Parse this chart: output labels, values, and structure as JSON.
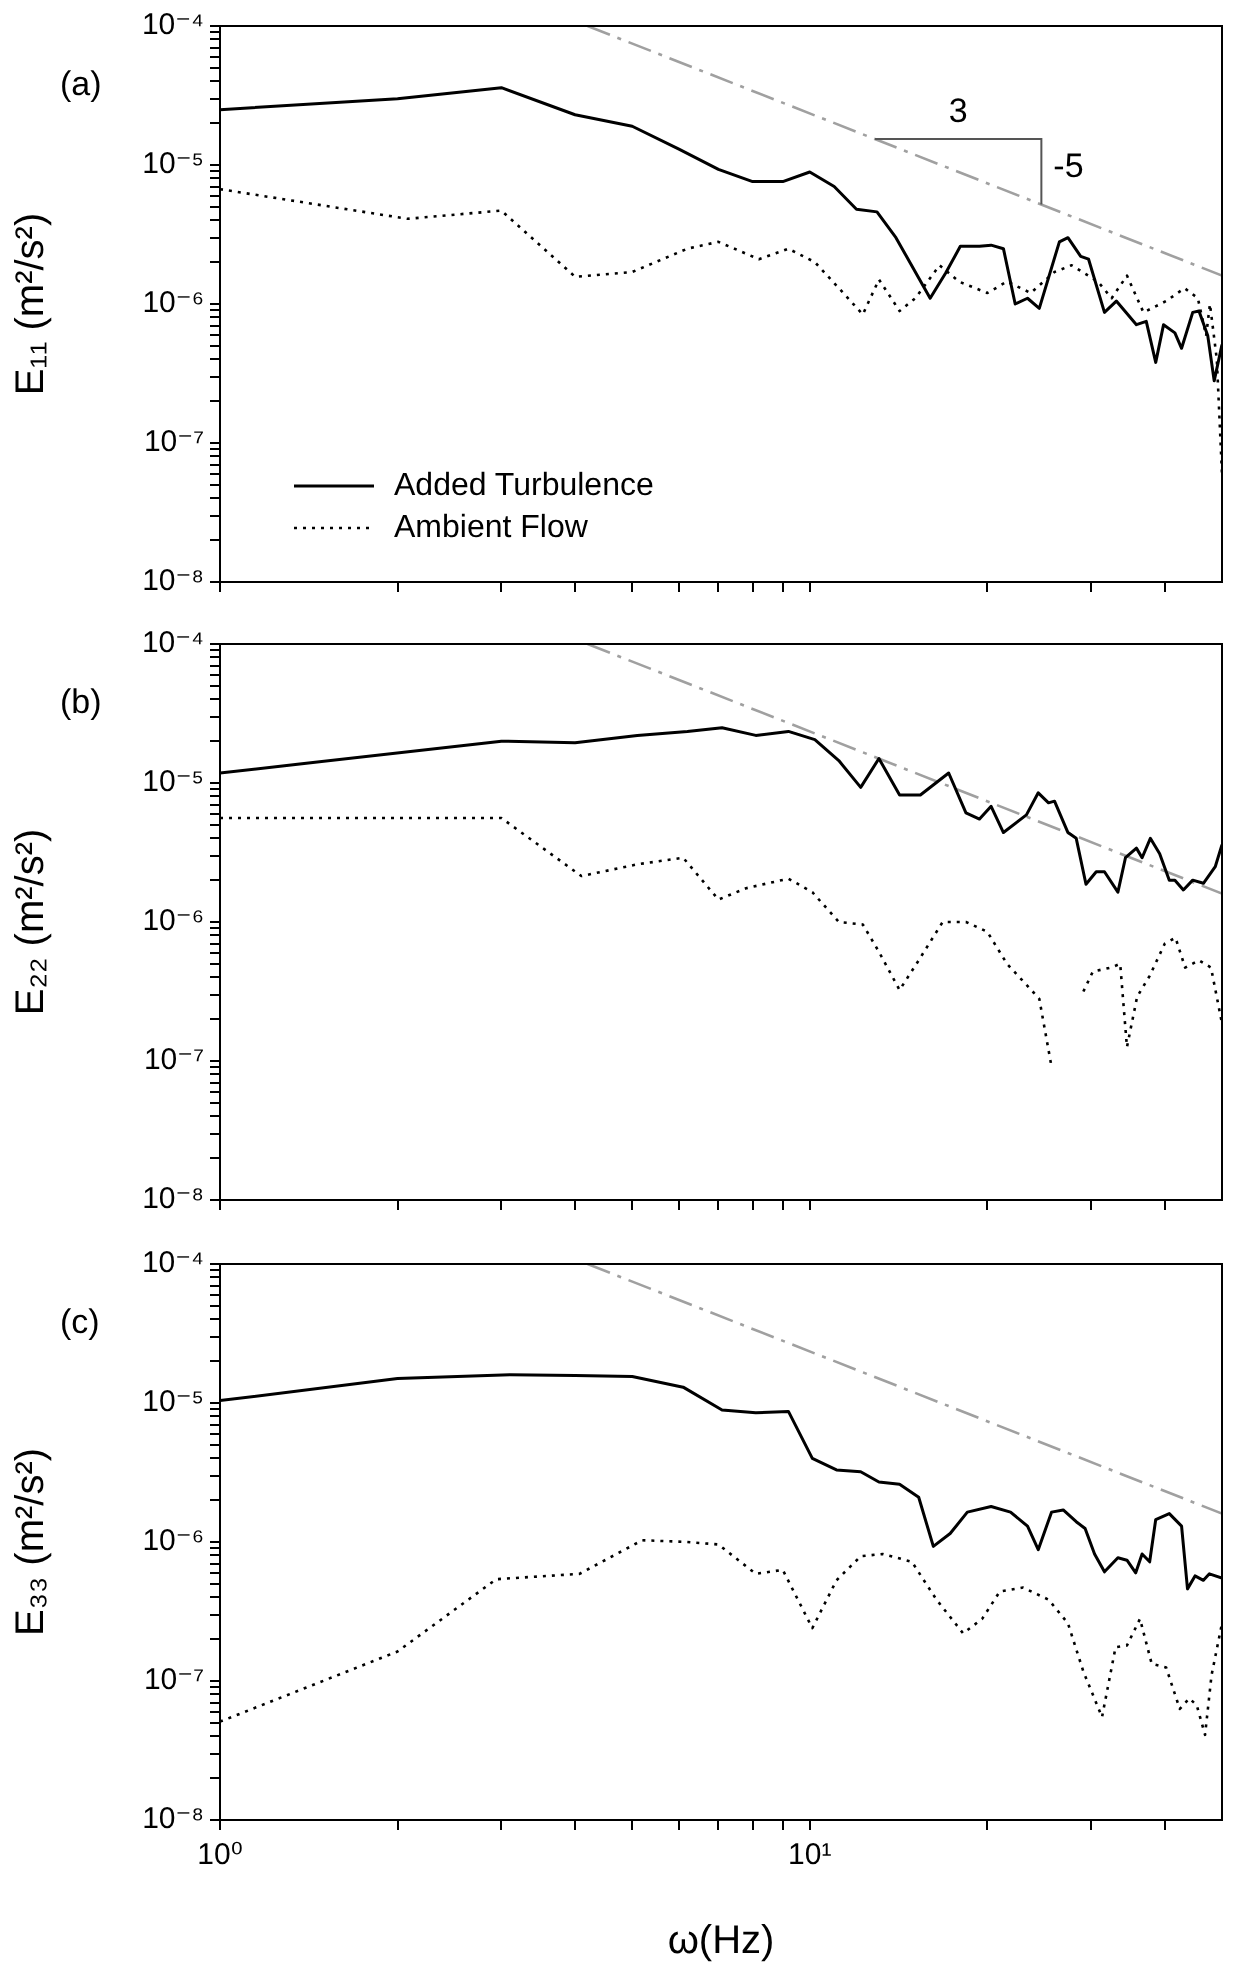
{
  "chart_data": [
    {
      "type": "line",
      "ylabel": "E₁₁ (m²/s²)",
      "log": "xy",
      "tick_labels": "y",
      "legend": "bottom left",
      "marker": "none",
      "xlim": [
        1,
        50
      ],
      "ylim": [
        1e-08,
        0.0001
      ],
      "xticks": [
        {
          "value": 1,
          "label": null
        },
        {
          "value": 2,
          "label": null
        },
        {
          "value": 3,
          "label": null
        },
        {
          "value": 4,
          "label": null
        },
        {
          "value": 5,
          "label": null
        },
        {
          "value": 6,
          "label": null
        },
        {
          "value": 7,
          "label": null
        },
        {
          "value": 8,
          "label": null
        },
        {
          "value": 9,
          "label": null
        },
        {
          "value": 10,
          "label": null
        },
        {
          "value": 20,
          "label": null
        },
        {
          "value": 30,
          "label": null
        },
        {
          "value": 40,
          "label": null
        }
      ],
      "yticks": [
        {
          "value": 1e-08,
          "label": "10⁻⁸"
        },
        {
          "value": 2e-08,
          "label": null
        },
        {
          "value": 3e-08,
          "label": null
        },
        {
          "value": 4e-08,
          "label": null
        },
        {
          "value": 5e-08,
          "label": null
        },
        {
          "value": 6e-08,
          "label": null
        },
        {
          "value": 7e-08,
          "label": null
        },
        {
          "value": 8e-08,
          "label": null
        },
        {
          "value": 9e-08,
          "label": null
        },
        {
          "value": 1e-07,
          "label": "10⁻⁷"
        },
        {
          "value": 2e-07,
          "label": null
        },
        {
          "value": 3e-07,
          "label": null
        },
        {
          "value": 4e-07,
          "label": null
        },
        {
          "value": 5e-07,
          "label": null
        },
        {
          "value": 6e-07,
          "label": null
        },
        {
          "value": 7e-07,
          "label": null
        },
        {
          "value": 8e-07,
          "label": null
        },
        {
          "value": 9e-07,
          "label": null
        },
        {
          "value": 1e-06,
          "label": "10⁻⁶"
        },
        {
          "value": 2e-06,
          "label": null
        },
        {
          "value": 3e-06,
          "label": null
        },
        {
          "value": 4e-06,
          "label": null
        },
        {
          "value": 5e-06,
          "label": null
        },
        {
          "value": 6e-06,
          "label": null
        },
        {
          "value": 7e-06,
          "label": null
        },
        {
          "value": 8e-06,
          "label": null
        },
        {
          "value": 9e-06,
          "label": null
        },
        {
          "value": 1e-05,
          "label": "10⁻⁵"
        },
        {
          "value": 2e-05,
          "label": null
        },
        {
          "value": 3e-05,
          "label": null
        },
        {
          "value": 4e-05,
          "label": null
        },
        {
          "value": 5e-05,
          "label": null
        },
        {
          "value": 6e-05,
          "label": null
        },
        {
          "value": 7e-05,
          "label": null
        },
        {
          "value": 8e-05,
          "label": null
        },
        {
          "value": 9e-05,
          "label": null
        },
        {
          "value": 0.0001,
          "label": "10⁻⁴"
        }
      ],
      "annotations": [
        "(a)",
        {
          "text": "3",
          "x": 12.9,
          "y": 1.54e-05
        },
        {
          "text": "-5",
          "x": 24.7,
          "y": 5.2e-06
        }
      ],
      "series": [
        {
          "name": "Added Turbulence",
          "color": "#000000",
          "line_style": "solid",
          "x": [
            1,
            2,
            3,
            4,
            5,
            6,
            7,
            8,
            9,
            10,
            11,
            12,
            13,
            14,
            16,
            17,
            18,
            19.4,
            20.3,
            21.3,
            22.3,
            23.4,
            24.5,
            26.5,
            27.4,
            28.8,
            29.7,
            31.6,
            33.1,
            35.8,
            37.2,
            38.6,
            39.8,
            41.6,
            42.7,
            44.6,
            45.7,
            47.3,
            48.5,
            50
          ],
          "values": [
            2.5e-05,
            3e-05,
            3.6e-05,
            2.3e-05,
            1.9e-05,
            1.3e-05,
            9.3e-06,
            7.6e-06,
            7.6e-06,
            8.9e-06,
            7e-06,
            4.8e-06,
            4.6e-06,
            3e-06,
            1.1e-06,
            1.67e-06,
            2.6e-06,
            2.6e-06,
            2.65e-06,
            2.5e-06,
            1e-06,
            1.1e-06,
            9.3e-07,
            2.8e-06,
            3e-06,
            2.2e-06,
            2.1e-06,
            8.7e-07,
            1.05e-06,
            7.1e-07,
            7.5e-07,
            3.8e-07,
            7.1e-07,
            6.2e-07,
            4.8e-07,
            8.7e-07,
            8.9e-07,
            5.9e-07,
            2.8e-07,
            5.1e-07
          ]
        },
        {
          "name": "Ambient Flow",
          "color": "#000000",
          "line_style": "dotted",
          "x": [
            1,
            2.08,
            3,
            4,
            5,
            6.2,
            7,
            8.2,
            9.2,
            10.2,
            11.4,
            12.3,
            13.1,
            14.2,
            15.1,
            16.6,
            17.9,
            20,
            21.6,
            23.7,
            26,
            27.8,
            30.8,
            32.5,
            34.5,
            36.8,
            40.2,
            43.2,
            45.5,
            47,
            47.7,
            49,
            50
          ],
          "values": [
            6.7e-06,
            4.1e-06,
            4.7e-06,
            1.57e-06,
            1.7e-06,
            2.5e-06,
            2.8e-06,
            2.1e-06,
            2.5e-06,
            2e-06,
            1.2e-06,
            8.4e-07,
            1.5e-06,
            8.9e-07,
            1.1e-06,
            1.9e-06,
            1.45e-06,
            1.2e-06,
            1.45e-06,
            1.2e-06,
            1.7e-06,
            1.9e-06,
            1.45e-06,
            1.1e-06,
            1.6e-06,
            8.7e-07,
            1.05e-06,
            1.3e-06,
            1.1e-06,
            5.9e-07,
            1e-06,
            4e-07,
            6e-08
          ]
        },
        {
          "type": "line",
          "color": "#a0a0a0",
          "line_style": "dashed",
          "x": [
            4.2,
            50
          ],
          "values": [
            0.0001,
            1.6e-06
          ]
        }
      ]
    },
    {
      "type": "line",
      "ylabel": "E₂₂ (m²/s²)",
      "log": "xy",
      "tick_labels": "y",
      "marker": "none",
      "xlim": [
        1,
        50
      ],
      "ylim": [
        1e-08,
        0.0001
      ],
      "xticks": [
        {
          "value": 1,
          "label": null
        },
        {
          "value": 2,
          "label": null
        },
        {
          "value": 3,
          "label": null
        },
        {
          "value": 4,
          "label": null
        },
        {
          "value": 5,
          "label": null
        },
        {
          "value": 6,
          "label": null
        },
        {
          "value": 7,
          "label": null
        },
        {
          "value": 8,
          "label": null
        },
        {
          "value": 9,
          "label": null
        },
        {
          "value": 10,
          "label": null
        },
        {
          "value": 20,
          "label": null
        },
        {
          "value": 30,
          "label": null
        },
        {
          "value": 40,
          "label": null
        }
      ],
      "yticks": [
        {
          "value": 1e-08,
          "label": "10⁻⁸"
        },
        {
          "value": 2e-08,
          "label": null
        },
        {
          "value": 3e-08,
          "label": null
        },
        {
          "value": 4e-08,
          "label": null
        },
        {
          "value": 5e-08,
          "label": null
        },
        {
          "value": 6e-08,
          "label": null
        },
        {
          "value": 7e-08,
          "label": null
        },
        {
          "value": 8e-08,
          "label": null
        },
        {
          "value": 9e-08,
          "label": null
        },
        {
          "value": 1e-07,
          "label": "10⁻⁷"
        },
        {
          "value": 2e-07,
          "label": null
        },
        {
          "value": 3e-07,
          "label": null
        },
        {
          "value": 4e-07,
          "label": null
        },
        {
          "value": 5e-07,
          "label": null
        },
        {
          "value": 6e-07,
          "label": null
        },
        {
          "value": 7e-07,
          "label": null
        },
        {
          "value": 8e-07,
          "label": null
        },
        {
          "value": 9e-07,
          "label": null
        },
        {
          "value": 1e-06,
          "label": "10⁻⁶"
        },
        {
          "value": 2e-06,
          "label": null
        },
        {
          "value": 3e-06,
          "label": null
        },
        {
          "value": 4e-06,
          "label": null
        },
        {
          "value": 5e-06,
          "label": null
        },
        {
          "value": 6e-06,
          "label": null
        },
        {
          "value": 7e-06,
          "label": null
        },
        {
          "value": 8e-06,
          "label": null
        },
        {
          "value": 9e-06,
          "label": null
        },
        {
          "value": 1e-05,
          "label": "10⁻⁵"
        },
        {
          "value": 2e-05,
          "label": null
        },
        {
          "value": 3e-05,
          "label": null
        },
        {
          "value": 4e-05,
          "label": null
        },
        {
          "value": 5e-05,
          "label": null
        },
        {
          "value": 6e-05,
          "label": null
        },
        {
          "value": 7e-05,
          "label": null
        },
        {
          "value": 8e-05,
          "label": null
        },
        {
          "value": 9e-05,
          "label": null
        },
        {
          "value": 0.0001,
          "label": "10⁻⁴"
        }
      ],
      "annotations": [
        "(b)"
      ],
      "series": [
        {
          "color": "#000000",
          "line_style": "solid",
          "x": [
            1,
            3,
            4,
            5.1,
            6.2,
            7.1,
            8.1,
            9.2,
            10.2,
            11.2,
            12.2,
            13.1,
            14.2,
            15.4,
            17.2,
            18.4,
            19.4,
            20.3,
            21.3,
            23.3,
            24.4,
            25.4,
            26,
            27.4,
            28.3,
            29.4,
            30.6,
            31.6,
            33.3,
            34.3,
            35.8,
            36.6,
            37.8,
            39.2,
            40.7,
            41.6,
            43,
            44.6,
            46.5,
            48.7,
            50
          ],
          "values": [
            1.18e-05,
            2e-05,
            1.95e-05,
            2.2e-05,
            2.35e-05,
            2.5e-05,
            2.2e-05,
            2.35e-05,
            2.05e-05,
            1.45e-05,
            9.3e-06,
            1.5e-05,
            8.2e-06,
            8.2e-06,
            1.18e-05,
            6.1e-06,
            5.5e-06,
            6.8e-06,
            4.4e-06,
            5.9e-06,
            8.5e-06,
            7.2e-06,
            7.4e-06,
            4.4e-06,
            4e-06,
            1.87e-06,
            2.3e-06,
            2.3e-06,
            1.64e-06,
            2.9e-06,
            3.4e-06,
            2.9e-06,
            4e-06,
            3.1e-06,
            2e-06,
            2e-06,
            1.7e-06,
            2e-06,
            1.9e-06,
            2.5e-06,
            3.6e-06
          ]
        },
        {
          "color": "#000000",
          "line_style": "dotted",
          "x": [
            1,
            3,
            4.1,
            5.1,
            6.1,
            7,
            7.8,
            9.2,
            10.1,
            11.2,
            12.3,
            13.1,
            14.2,
            15.3,
            16.8,
            18.4,
            20,
            21.6,
            23.5,
            24.5,
            25.7,
            27,
            29.1,
            30.2,
            32.4,
            33.6,
            34.5,
            35.9,
            37.7,
            40,
            41.7,
            43.3,
            45.7,
            47.9,
            50
          ],
          "values": [
            5.6e-06,
            5.6e-06,
            2.14e-06,
            2.6e-06,
            2.9e-06,
            1.45e-06,
            1.75e-06,
            2.05e-06,
            1.64e-06,
            1e-06,
            9.6e-07,
            6.1e-07,
            3.24e-07,
            5.3e-07,
            1e-06,
            1e-06,
            8.5e-07,
            5e-07,
            3.4e-07,
            2.8e-07,
            9.1e-08,
            null,
            3.16e-07,
            4.4e-07,
            4.7e-07,
            5e-07,
            1.26e-07,
            2.9e-07,
            4.1e-07,
            7e-07,
            7.7e-07,
            4.7e-07,
            5.3e-07,
            4.7e-07,
            1.86e-07
          ]
        },
        {
          "type": "line",
          "color": "#a0a0a0",
          "line_style": "dashed",
          "x": [
            4.2,
            50
          ],
          "values": [
            0.0001,
            1.6e-06
          ]
        }
      ]
    },
    {
      "type": "line",
      "ylabel": "E₃₃ (m²/s²)",
      "xlabel": "ω(Hz)",
      "log": "xy",
      "marker": "none",
      "xlim": [
        1,
        50
      ],
      "ylim": [
        1e-08,
        0.0001
      ],
      "xticks": [
        {
          "value": 1,
          "label": "10⁰"
        },
        {
          "value": 2,
          "label": null
        },
        {
          "value": 3,
          "label": null
        },
        {
          "value": 4,
          "label": null
        },
        {
          "value": 5,
          "label": null
        },
        {
          "value": 6,
          "label": null
        },
        {
          "value": 7,
          "label": null
        },
        {
          "value": 8,
          "label": null
        },
        {
          "value": 9,
          "label": null
        },
        {
          "value": 10,
          "label": "10¹"
        },
        {
          "value": 20,
          "label": null
        },
        {
          "value": 30,
          "label": null
        },
        {
          "value": 40,
          "label": null
        }
      ],
      "yticks": [
        {
          "value": 1e-08,
          "label": "10⁻⁸"
        },
        {
          "value": 2e-08,
          "label": null
        },
        {
          "value": 3e-08,
          "label": null
        },
        {
          "value": 4e-08,
          "label": null
        },
        {
          "value": 5e-08,
          "label": null
        },
        {
          "value": 6e-08,
          "label": null
        },
        {
          "value": 7e-08,
          "label": null
        },
        {
          "value": 8e-08,
          "label": null
        },
        {
          "value": 9e-08,
          "label": null
        },
        {
          "value": 1e-07,
          "label": "10⁻⁷"
        },
        {
          "value": 2e-07,
          "label": null
        },
        {
          "value": 3e-07,
          "label": null
        },
        {
          "value": 4e-07,
          "label": null
        },
        {
          "value": 5e-07,
          "label": null
        },
        {
          "value": 6e-07,
          "label": null
        },
        {
          "value": 7e-07,
          "label": null
        },
        {
          "value": 8e-07,
          "label": null
        },
        {
          "value": 9e-07,
          "label": null
        },
        {
          "value": 1e-06,
          "label": "10⁻⁶"
        },
        {
          "value": 2e-06,
          "label": null
        },
        {
          "value": 3e-06,
          "label": null
        },
        {
          "value": 4e-06,
          "label": null
        },
        {
          "value": 5e-06,
          "label": null
        },
        {
          "value": 6e-06,
          "label": null
        },
        {
          "value": 7e-06,
          "label": null
        },
        {
          "value": 8e-06,
          "label": null
        },
        {
          "value": 9e-06,
          "label": null
        },
        {
          "value": 1e-05,
          "label": "10⁻⁵"
        },
        {
          "value": 2e-05,
          "label": null
        },
        {
          "value": 3e-05,
          "label": null
        },
        {
          "value": 4e-05,
          "label": null
        },
        {
          "value": 5e-05,
          "label": null
        },
        {
          "value": 6e-05,
          "label": null
        },
        {
          "value": 7e-05,
          "label": null
        },
        {
          "value": 8e-05,
          "label": null
        },
        {
          "value": 9e-05,
          "label": null
        },
        {
          "value": 0.0001,
          "label": "10⁻⁴"
        }
      ],
      "annotations": [
        "(c)"
      ],
      "series": [
        {
          "color": "#000000",
          "line_style": "solid",
          "x": [
            1,
            2,
            3.1,
            4,
            5,
            6.1,
            7.1,
            8.1,
            9.2,
            10.1,
            11.1,
            12.2,
            13.1,
            14.2,
            15.3,
            16.2,
            17.3,
            18.5,
            20.3,
            21.9,
            23.4,
            24.4,
            25.7,
            26.9,
            28.3,
            29.3,
            30.4,
            31.6,
            33.3,
            34.5,
            35.7,
            36.6,
            37.7,
            38.6,
            40.7,
            42.7,
            43.7,
            45,
            46.5,
            47.6,
            50
          ],
          "values": [
            1.04e-05,
            1.5e-05,
            1.6e-05,
            1.58e-05,
            1.55e-05,
            1.3e-05,
            8.9e-06,
            8.5e-06,
            8.7e-06,
            4e-06,
            3.3e-06,
            3.2e-06,
            2.7e-06,
            2.6e-06,
            2.1e-06,
            9.3e-07,
            1.15e-06,
            1.64e-06,
            1.8e-06,
            1.64e-06,
            1.3e-06,
            8.8e-07,
            1.64e-06,
            1.7e-06,
            1.4e-06,
            1.25e-06,
            8.2e-07,
            6.1e-07,
            7.7e-07,
            7.4e-07,
            6e-07,
            8.2e-07,
            7.2e-07,
            1.45e-06,
            1.6e-06,
            1.3e-06,
            4.6e-07,
            5.7e-07,
            5.3e-07,
            5.9e-07,
            5.5e-07
          ]
        },
        {
          "color": "#000000",
          "line_style": "dotted",
          "x": [
            1,
            2,
            2.94,
            4.07,
            5.2,
            6.2,
            7,
            8.1,
            9,
            10.1,
            11.1,
            12.2,
            13.3,
            14.9,
            16.4,
            18.2,
            19.6,
            21,
            23,
            25.4,
            27.4,
            29.1,
            31.3,
            33,
            34.5,
            36.3,
            38,
            40.2,
            42.4,
            44,
            45.3,
            46.8,
            48,
            50
          ],
          "values": [
            5.1e-08,
            1.63e-07,
            5.4e-07,
            5.9e-07,
            1.03e-06,
            1e-06,
            9.6e-07,
            5.9e-07,
            6.3e-07,
            2.4e-07,
            5.3e-07,
            7.9e-07,
            8.2e-07,
            7.2e-07,
            3.85e-07,
            2.2e-07,
            2.8e-07,
            4.4e-07,
            4.7e-07,
            3.85e-07,
            2.6e-07,
            1.17e-07,
            5.5e-08,
            1.75e-07,
            1.8e-07,
            2.8e-07,
            1.33e-07,
            1.25e-07,
            6.3e-08,
            7.5e-08,
            6.7e-08,
            4.1e-08,
            1.1e-07,
            2.6e-07
          ]
        },
        {
          "type": "line",
          "color": "#a0a0a0",
          "line_style": "dashed",
          "x": [
            4.2,
            50
          ],
          "values": [
            0.0001,
            1.6e-06
          ]
        }
      ]
    }
  ]
}
